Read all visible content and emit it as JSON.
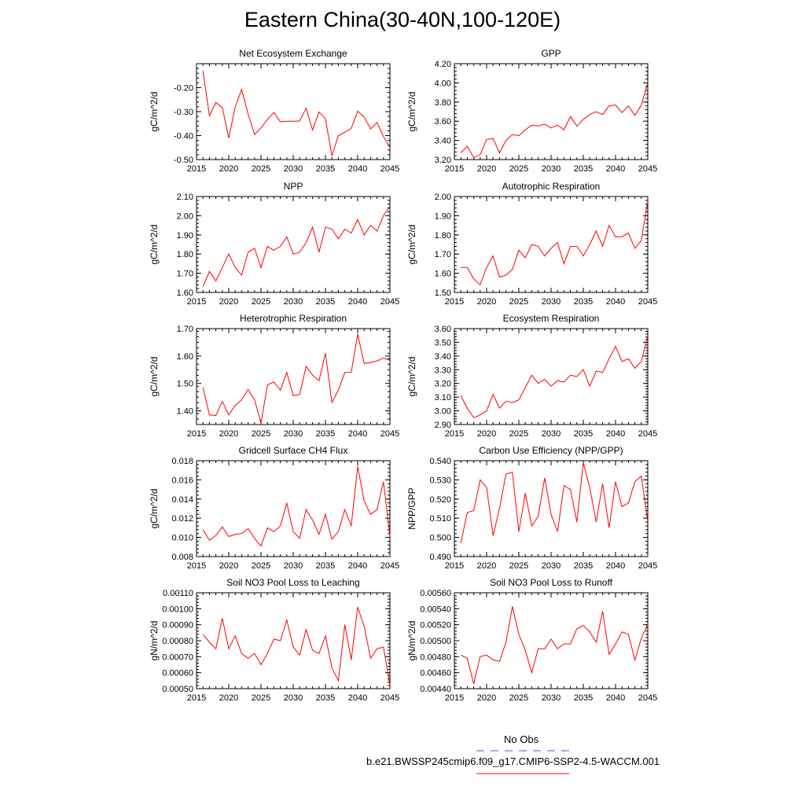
{
  "title": "Eastern China(30-40N,100-120E)",
  "legend": {
    "obs_label": "No Obs",
    "obs_color": "#5555cc",
    "model_label": "b.e21.BWSSP245cmip6.f09_g17.CMIP6-SSP2-4.5-WACCM.001",
    "model_color": "#ff0000"
  },
  "chart_data": [
    {
      "type": "line",
      "title": "Net Ecosystem Exchange",
      "ylabel": "gC/m^2/d",
      "xlim": [
        2015,
        2045
      ],
      "ylim": [
        -0.5,
        -0.1
      ],
      "xticks": [
        "2015",
        "2020",
        "2025",
        "2030",
        "2035",
        "2040",
        "2045"
      ],
      "yticks": [
        "-0.50",
        "-0.40",
        "-0.30",
        "-0.20"
      ],
      "x": [
        2016,
        2017,
        2018,
        2019,
        2020,
        2021,
        2022,
        2023,
        2024,
        2025,
        2026,
        2027,
        2028,
        2029,
        2030,
        2031,
        2032,
        2033,
        2034,
        2035,
        2036,
        2037,
        2038,
        2039,
        2040,
        2041,
        2042,
        2043,
        2044,
        2045
      ],
      "y": [
        -0.13,
        -0.317,
        -0.262,
        -0.283,
        -0.41,
        -0.28,
        -0.208,
        -0.31,
        -0.395,
        -0.368,
        -0.333,
        -0.303,
        -0.342,
        -0.34,
        -0.34,
        -0.339,
        -0.286,
        -0.377,
        -0.301,
        -0.33,
        -0.485,
        -0.4,
        -0.386,
        -0.37,
        -0.298,
        -0.322,
        -0.372,
        -0.345,
        -0.404,
        -0.45
      ]
    },
    {
      "type": "line",
      "title": "GPP",
      "ylabel": "gC/m^2/d",
      "xlim": [
        2015,
        2045
      ],
      "ylim": [
        3.2,
        4.2
      ],
      "xticks": [
        "2015",
        "2020",
        "2025",
        "2030",
        "2035",
        "2040",
        "2045"
      ],
      "yticks": [
        "3.20",
        "3.40",
        "3.60",
        "3.80",
        "4.00",
        "4.20"
      ],
      "x": [
        2016,
        2017,
        2018,
        2019,
        2020,
        2021,
        2022,
        2023,
        2024,
        2025,
        2026,
        2027,
        2028,
        2029,
        2030,
        2031,
        2032,
        2033,
        2034,
        2035,
        2036,
        2037,
        2038,
        2039,
        2040,
        2041,
        2042,
        2043,
        2044,
        2045
      ],
      "y": [
        3.27,
        3.34,
        3.22,
        3.25,
        3.41,
        3.42,
        3.27,
        3.4,
        3.46,
        3.45,
        3.51,
        3.56,
        3.55,
        3.57,
        3.53,
        3.56,
        3.51,
        3.65,
        3.55,
        3.62,
        3.67,
        3.7,
        3.67,
        3.76,
        3.77,
        3.69,
        3.76,
        3.66,
        3.77,
        4.0
      ]
    },
    {
      "type": "line",
      "title": "NPP",
      "ylabel": "gC/m^2/d",
      "xlim": [
        2015,
        2045
      ],
      "ylim": [
        1.6,
        2.1
      ],
      "xticks": [
        "2015",
        "2020",
        "2025",
        "2030",
        "2035",
        "2040",
        "2045"
      ],
      "yticks": [
        "1.60",
        "1.70",
        "1.80",
        "1.90",
        "2.00",
        "2.10"
      ],
      "x": [
        2016,
        2017,
        2018,
        2019,
        2020,
        2021,
        2022,
        2023,
        2024,
        2025,
        2026,
        2027,
        2028,
        2029,
        2030,
        2031,
        2032,
        2033,
        2034,
        2035,
        2036,
        2037,
        2038,
        2039,
        2040,
        2041,
        2042,
        2043,
        2044,
        2045
      ],
      "y": [
        1.63,
        1.71,
        1.66,
        1.73,
        1.8,
        1.73,
        1.69,
        1.81,
        1.83,
        1.73,
        1.84,
        1.82,
        1.84,
        1.89,
        1.8,
        1.81,
        1.86,
        1.94,
        1.81,
        1.94,
        1.93,
        1.88,
        1.93,
        1.91,
        1.98,
        1.9,
        1.95,
        1.92,
        2.0,
        2.05
      ]
    },
    {
      "type": "line",
      "title": "Autotrophic Respiration",
      "ylabel": "gC/m^2/d",
      "xlim": [
        2015,
        2045
      ],
      "ylim": [
        1.5,
        2.0
      ],
      "xticks": [
        "2015",
        "2020",
        "2025",
        "2030",
        "2035",
        "2040",
        "2045"
      ],
      "yticks": [
        "1.50",
        "1.60",
        "1.70",
        "1.80",
        "1.90",
        "2.00"
      ],
      "x": [
        2016,
        2017,
        2018,
        2019,
        2020,
        2021,
        2022,
        2023,
        2024,
        2025,
        2026,
        2027,
        2028,
        2029,
        2030,
        2031,
        2032,
        2033,
        2034,
        2035,
        2036,
        2037,
        2038,
        2039,
        2040,
        2041,
        2042,
        2043,
        2044,
        2045
      ],
      "y": [
        1.63,
        1.63,
        1.57,
        1.54,
        1.63,
        1.69,
        1.58,
        1.59,
        1.62,
        1.72,
        1.68,
        1.75,
        1.74,
        1.69,
        1.73,
        1.76,
        1.65,
        1.74,
        1.74,
        1.69,
        1.75,
        1.82,
        1.74,
        1.85,
        1.79,
        1.79,
        1.81,
        1.73,
        1.77,
        1.98
      ]
    },
    {
      "type": "line",
      "title": "Heterotrophic Respiration",
      "ylabel": "gC/m^2/d",
      "xlim": [
        2015,
        2045
      ],
      "ylim": [
        1.35,
        1.7
      ],
      "xticks": [
        "2015",
        "2020",
        "2025",
        "2030",
        "2035",
        "2040",
        "2045"
      ],
      "yticks": [
        "1.40",
        "1.50",
        "1.60",
        "1.70"
      ],
      "x": [
        2016,
        2017,
        2018,
        2019,
        2020,
        2021,
        2022,
        2023,
        2024,
        2025,
        2026,
        2027,
        2028,
        2029,
        2030,
        2031,
        2032,
        2033,
        2034,
        2035,
        2036,
        2037,
        2038,
        2039,
        2040,
        2041,
        2042,
        2043,
        2044,
        2045
      ],
      "y": [
        1.485,
        1.385,
        1.383,
        1.435,
        1.385,
        1.42,
        1.44,
        1.478,
        1.44,
        1.355,
        1.495,
        1.505,
        1.475,
        1.54,
        1.455,
        1.46,
        1.562,
        1.53,
        1.51,
        1.61,
        1.43,
        1.475,
        1.54,
        1.54,
        1.68,
        1.573,
        1.576,
        1.582,
        1.592,
        1.585
      ]
    },
    {
      "type": "line",
      "title": "Ecosystem Respiration",
      "ylabel": "gC/m^2/d",
      "xlim": [
        2015,
        2045
      ],
      "ylim": [
        2.9,
        3.6
      ],
      "xticks": [
        "2015",
        "2020",
        "2025",
        "2030",
        "2035",
        "2040",
        "2045"
      ],
      "yticks": [
        "2.90",
        "3.00",
        "3.10",
        "3.20",
        "3.30",
        "3.40",
        "3.50",
        "3.60"
      ],
      "x": [
        2016,
        2017,
        2018,
        2019,
        2020,
        2021,
        2022,
        2023,
        2024,
        2025,
        2026,
        2027,
        2028,
        2029,
        2030,
        2031,
        2032,
        2033,
        2034,
        2035,
        2036,
        2037,
        2038,
        2039,
        2040,
        2041,
        2042,
        2043,
        2044,
        2045
      ],
      "y": [
        3.11,
        3.02,
        2.95,
        2.97,
        3.0,
        3.12,
        3.02,
        3.07,
        3.06,
        3.08,
        3.17,
        3.26,
        3.2,
        3.23,
        3.18,
        3.22,
        3.21,
        3.26,
        3.25,
        3.3,
        3.18,
        3.29,
        3.28,
        3.38,
        3.47,
        3.36,
        3.38,
        3.31,
        3.36,
        3.55
      ]
    },
    {
      "type": "line",
      "title": "Gridcell Surface CH4 Flux",
      "ylabel": "gC/m^2/d",
      "xlim": [
        2015,
        2045
      ],
      "ylim": [
        0.008,
        0.018
      ],
      "xticks": [
        "2015",
        "2020",
        "2025",
        "2030",
        "2035",
        "2040",
        "2045"
      ],
      "yticks": [
        "0.008",
        "0.010",
        "0.012",
        "0.014",
        "0.016",
        "0.018"
      ],
      "x": [
        2016,
        2017,
        2018,
        2019,
        2020,
        2021,
        2022,
        2023,
        2024,
        2025,
        2026,
        2027,
        2028,
        2029,
        2030,
        2031,
        2032,
        2033,
        2034,
        2035,
        2036,
        2037,
        2038,
        2039,
        2040,
        2041,
        2042,
        2043,
        2044,
        2045
      ],
      "y": [
        0.0108,
        0.0097,
        0.0102,
        0.0111,
        0.0101,
        0.0103,
        0.0104,
        0.0109,
        0.0099,
        0.0091,
        0.011,
        0.0106,
        0.0112,
        0.0136,
        0.0106,
        0.0099,
        0.0129,
        0.0118,
        0.0103,
        0.0124,
        0.0098,
        0.0106,
        0.0129,
        0.0112,
        0.0174,
        0.0138,
        0.0124,
        0.0129,
        0.0158,
        0.0101
      ]
    },
    {
      "type": "line",
      "title": "Carbon Use Efficiency (NPP/GPP)",
      "ylabel": "NPP/GPP",
      "xlim": [
        2015,
        2045
      ],
      "ylim": [
        0.49,
        0.54
      ],
      "xticks": [
        "2015",
        "2020",
        "2025",
        "2030",
        "2035",
        "2040",
        "2045"
      ],
      "yticks": [
        "0.490",
        "0.500",
        "0.510",
        "0.520",
        "0.530",
        "0.540"
      ],
      "x": [
        2016,
        2017,
        2018,
        2019,
        2020,
        2021,
        2022,
        2023,
        2024,
        2025,
        2026,
        2027,
        2028,
        2029,
        2030,
        2031,
        2032,
        2033,
        2034,
        2035,
        2036,
        2037,
        2038,
        2039,
        2040,
        2041,
        2042,
        2043,
        2044,
        2045
      ],
      "y": [
        0.497,
        0.513,
        0.514,
        0.53,
        0.526,
        0.501,
        0.515,
        0.533,
        0.534,
        0.503,
        0.523,
        0.506,
        0.511,
        0.531,
        0.512,
        0.503,
        0.527,
        0.525,
        0.508,
        0.539,
        0.526,
        0.508,
        0.528,
        0.505,
        0.529,
        0.516,
        0.518,
        0.529,
        0.532,
        0.508
      ]
    },
    {
      "type": "line",
      "title": "Soil NO3 Pool Loss to Leaching",
      "ylabel": "gN/m^2/d",
      "xlim": [
        2015,
        2045
      ],
      "ylim": [
        0.0005,
        0.0011
      ],
      "xticks": [
        "2015",
        "2020",
        "2025",
        "2030",
        "2035",
        "2040",
        "2045"
      ],
      "yticks": [
        "0.00050",
        "0.00060",
        "0.00070",
        "0.00080",
        "0.00090",
        "0.00100",
        "0.00110"
      ],
      "x": [
        2016,
        2017,
        2018,
        2019,
        2020,
        2021,
        2022,
        2023,
        2024,
        2025,
        2026,
        2027,
        2028,
        2029,
        2030,
        2031,
        2032,
        2033,
        2034,
        2035,
        2036,
        2037,
        2038,
        2039,
        2040,
        2041,
        2042,
        2043,
        2044,
        2045
      ],
      "y": [
        0.00084,
        0.00079,
        0.00075,
        0.00094,
        0.00075,
        0.00083,
        0.00072,
        0.00069,
        0.00072,
        0.00065,
        0.00072,
        0.00081,
        0.0008,
        0.00093,
        0.00076,
        0.00071,
        0.00087,
        0.00074,
        0.00072,
        0.00083,
        0.00063,
        0.00055,
        0.0009,
        0.00068,
        0.00101,
        0.00089,
        0.00069,
        0.00075,
        0.00076,
        0.00052
      ]
    },
    {
      "type": "line",
      "title": "Soil NO3 Pool Loss to Runoff",
      "ylabel": "gN/m^2/d",
      "xlim": [
        2015,
        2045
      ],
      "ylim": [
        0.0044,
        0.0056
      ],
      "xticks": [
        "2015",
        "2020",
        "2025",
        "2030",
        "2035",
        "2040",
        "2045"
      ],
      "yticks": [
        "0.00440",
        "0.00460",
        "0.00480",
        "0.00500",
        "0.00520",
        "0.00540",
        "0.00560"
      ],
      "x": [
        2016,
        2017,
        2018,
        2019,
        2020,
        2021,
        2022,
        2023,
        2024,
        2025,
        2026,
        2027,
        2028,
        2029,
        2030,
        2031,
        2032,
        2033,
        2034,
        2035,
        2036,
        2037,
        2038,
        2039,
        2040,
        2041,
        2042,
        2043,
        2044,
        2045
      ],
      "y": [
        0.00482,
        0.00478,
        0.00446,
        0.0048,
        0.00482,
        0.00476,
        0.00474,
        0.00498,
        0.00543,
        0.00508,
        0.00488,
        0.0046,
        0.0049,
        0.0049,
        0.00502,
        0.0049,
        0.00496,
        0.00496,
        0.00515,
        0.00519,
        0.00511,
        0.00498,
        0.00537,
        0.00483,
        0.00496,
        0.00511,
        0.00508,
        0.00476,
        0.00503,
        0.00521
      ]
    }
  ]
}
